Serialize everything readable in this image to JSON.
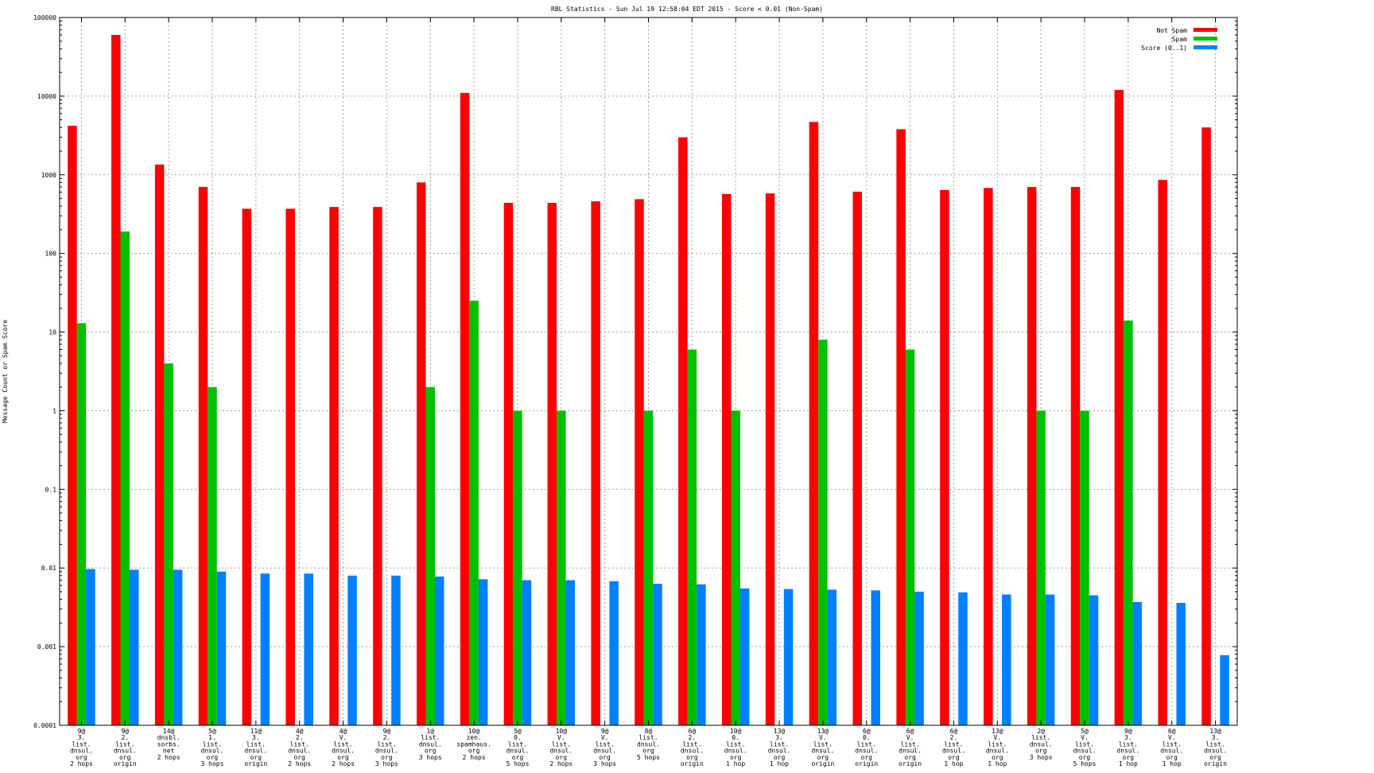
{
  "chart_data": {
    "type": "bar",
    "title": "RBL Statistics - Sun Jul 19 12:58:04 EDT 2015 - Score < 0.01 (Non-Spam)",
    "xlabel": "",
    "ylabel": "Message Count or Spam Score",
    "yscale": "log",
    "ylim": [
      0.0001,
      100000
    ],
    "yticks": [
      "0.0001",
      "0.001",
      "0.01",
      "0.1",
      "1",
      "10",
      "100",
      "1000",
      "10000",
      "100000"
    ],
    "grid": true,
    "legend_position": "top-right",
    "categories": [
      [
        "9@",
        "3.",
        "list.",
        "dnsul.",
        "org",
        "2 hops"
      ],
      [
        "9@",
        "2.",
        "list.",
        "dnsul.",
        "org",
        "origin"
      ],
      [
        "14@",
        "dnsbl.",
        "sorbs.",
        "net",
        "2 hops"
      ],
      [
        "5@",
        "1.",
        "list.",
        "dnsul.",
        "org",
        "3 hops"
      ],
      [
        "11@",
        "3.",
        "list.",
        "dnsul.",
        "org",
        "origin"
      ],
      [
        "4@",
        "2.",
        "list.",
        "dnsul.",
        "org",
        "2 hops"
      ],
      [
        "4@",
        "V.",
        "list.",
        "dnsul.",
        "org",
        "2 hops"
      ],
      [
        "9@",
        "2.",
        "list.",
        "dnsul.",
        "org",
        "3 hops"
      ],
      [
        "1@",
        "list.",
        "dnsul.",
        "org",
        "3 hops"
      ],
      [
        "10@",
        "zen.",
        "spamhaus.",
        "org",
        "2 hops"
      ],
      [
        "5@",
        "0.",
        "list.",
        "dnsul.",
        "org",
        "5 hops"
      ],
      [
        "10@",
        "V.",
        "list.",
        "dnsul.",
        "org",
        "2 hops"
      ],
      [
        "9@",
        "V.",
        "list.",
        "dnsul.",
        "org",
        "3 hops"
      ],
      [
        "8@",
        "list.",
        "dnsul.",
        "org",
        "5 hops"
      ],
      [
        "6@",
        "2.",
        "list.",
        "dnsul.",
        "org",
        "origin"
      ],
      [
        "10@",
        "0.",
        "list.",
        "dnsul.",
        "org",
        "1 hop"
      ],
      [
        "13@",
        "3.",
        "list.",
        "dnsul.",
        "org",
        "1 hop"
      ],
      [
        "13@",
        "V.",
        "list.",
        "dnsul.",
        "org",
        "origin"
      ],
      [
        "6@",
        "0.",
        "list.",
        "dnsul.",
        "org",
        "origin"
      ],
      [
        "6@",
        "V.",
        "list.",
        "dnsul.",
        "org",
        "origin"
      ],
      [
        "6@",
        "2.",
        "list.",
        "dnsul.",
        "org",
        "1 hop"
      ],
      [
        "13@",
        "V.",
        "list.",
        "dnsul.",
        "org",
        "1 hop"
      ],
      [
        "2@",
        "list.",
        "dnsul.",
        "org",
        "3 hops"
      ],
      [
        "5@",
        "V.",
        "list.",
        "dnsul.",
        "org",
        "5 hops"
      ],
      [
        "9@",
        "3.",
        "list.",
        "dnsul.",
        "org",
        "1 hop"
      ],
      [
        "6@",
        "V.",
        "list.",
        "dnsul.",
        "org",
        "1 hop"
      ],
      [
        "13@",
        "3.",
        "list.",
        "dnsul.",
        "org",
        "origin"
      ]
    ],
    "series": [
      {
        "name": "Not Spam",
        "color": "#ff0000",
        "values": [
          4200,
          60000,
          1350,
          700,
          370,
          370,
          390,
          390,
          800,
          11000,
          440,
          440,
          460,
          490,
          3000,
          570,
          580,
          4700,
          610,
          3800,
          640,
          680,
          700,
          700,
          12000,
          860,
          4000
        ]
      },
      {
        "name": "Spam",
        "color": "#00c000",
        "values": [
          13,
          190,
          4,
          2,
          null,
          null,
          null,
          null,
          2,
          25,
          1,
          1,
          null,
          1,
          6,
          1,
          null,
          8,
          null,
          6,
          null,
          null,
          1,
          1,
          14,
          null,
          null
        ]
      },
      {
        "name": "Score (0..1)",
        "color": "#0080ff",
        "values": [
          0.0097,
          0.0095,
          0.0095,
          0.009,
          0.0085,
          0.0085,
          0.008,
          0.008,
          0.0078,
          0.0072,
          0.007,
          0.007,
          0.0068,
          0.0063,
          0.0062,
          0.0055,
          0.0054,
          0.0053,
          0.0052,
          0.005,
          0.0049,
          0.0046,
          0.0046,
          0.0045,
          0.0037,
          0.0036,
          0.00078
        ]
      }
    ]
  }
}
